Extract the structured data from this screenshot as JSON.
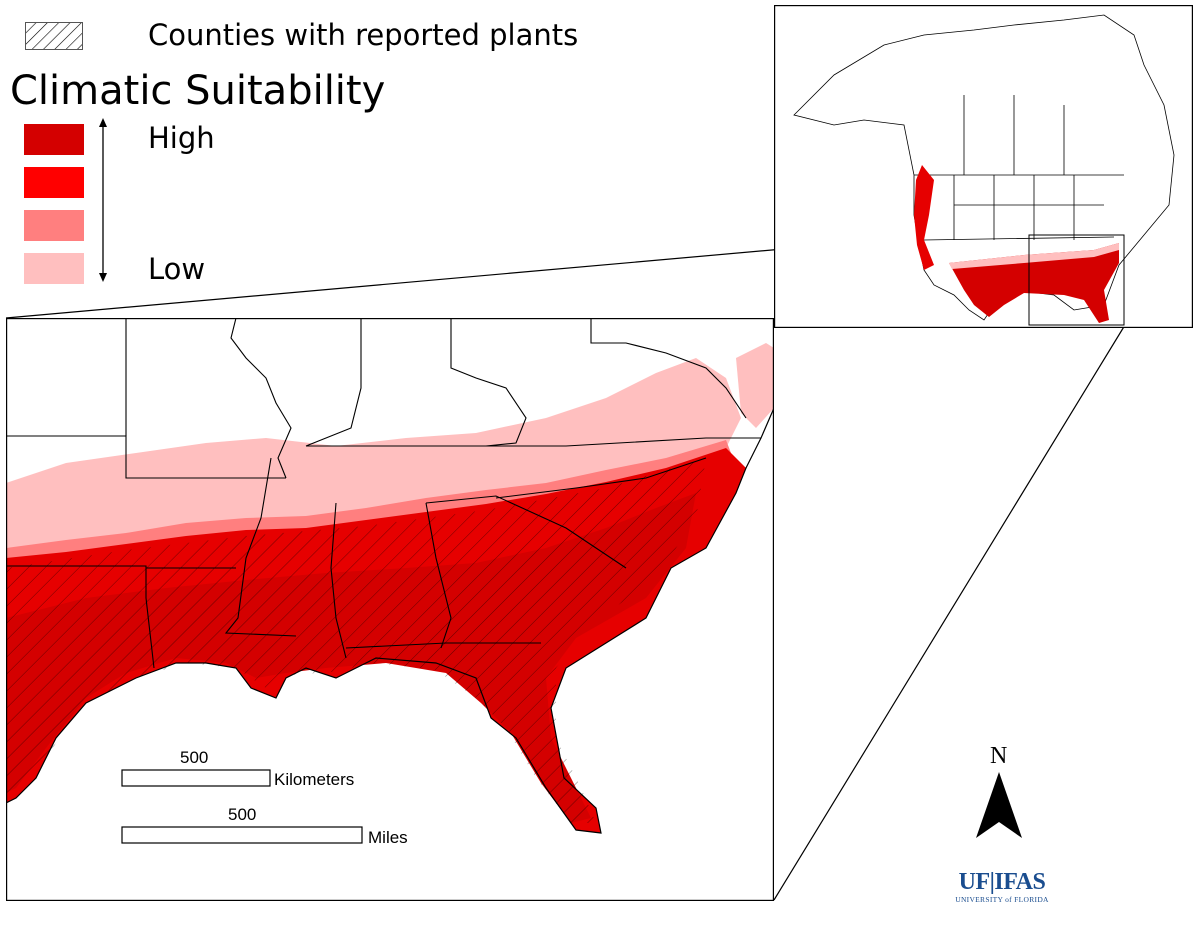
{
  "legend": {
    "hatch_label": "Counties with reported plants",
    "title": "Climatic Suitability",
    "high_label": "High",
    "low_label": "Low",
    "suitability_colors": [
      "#d40000",
      "#ff0000",
      "#ff7f7f",
      "#ffbfbf"
    ],
    "hatch_symbol": "diagonal-hatch-box"
  },
  "scale_bars": {
    "kilometers": {
      "value": "500",
      "unit": "Kilometers"
    },
    "miles": {
      "value": "500",
      "unit": "Miles"
    }
  },
  "north_arrow": {
    "letter": "N",
    "icon": "north-arrow-icon"
  },
  "logo": {
    "main": "UF|IFAS",
    "sub": "UNIVERSITY of FLORIDA",
    "color": "#1a4d8f"
  },
  "map": {
    "land_color": "#ffffff",
    "boundary_color": "#000000",
    "main_extent": "Southeastern United States",
    "inset_extent": "North America"
  }
}
